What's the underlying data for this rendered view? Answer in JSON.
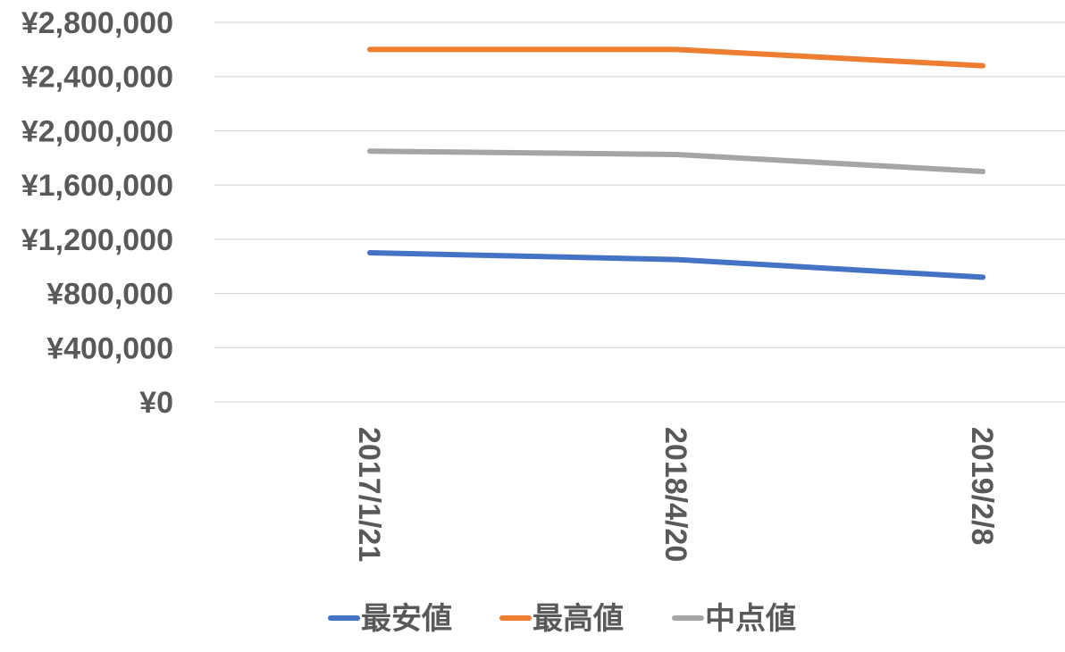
{
  "chart_data": {
    "type": "line",
    "categories": [
      "2017/1/21",
      "2018/4/20",
      "2019/2/8"
    ],
    "series": [
      {
        "name": "最安値",
        "values": [
          1100000,
          1050000,
          920000
        ],
        "color": "#4472c4"
      },
      {
        "name": "最高値",
        "values": [
          2600000,
          2600000,
          2480000
        ],
        "color": "#ed7d31"
      },
      {
        "name": "中点値",
        "values": [
          1850000,
          1825000,
          1700000
        ],
        "color": "#a5a5a5"
      }
    ],
    "y_ticks": [
      "¥0",
      "¥400,000",
      "¥800,000",
      "¥1,200,000",
      "¥1,600,000",
      "¥2,000,000",
      "¥2,400,000",
      "¥2,800,000"
    ],
    "ylim": [
      0,
      2800000
    ],
    "y_tick_step": 400000,
    "grid": true,
    "legend_position": "bottom",
    "title": "",
    "xlabel": "",
    "ylabel": ""
  }
}
